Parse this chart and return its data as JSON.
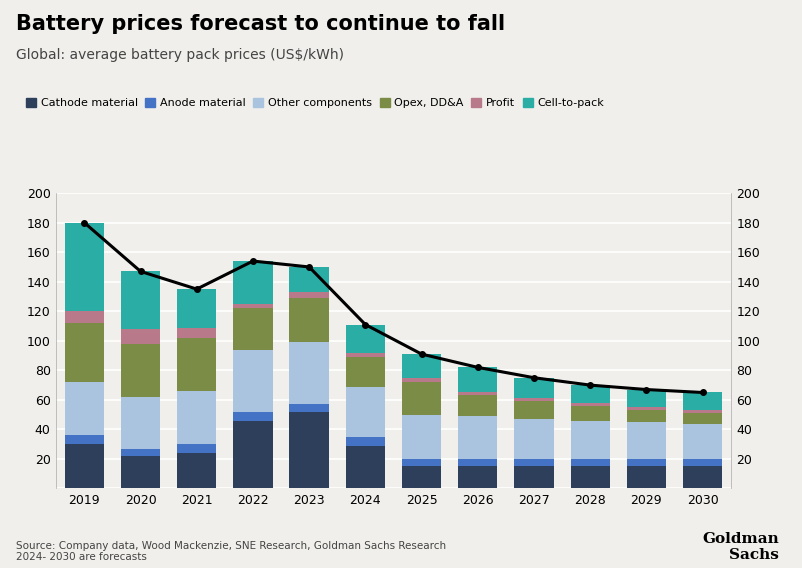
{
  "years": [
    2019,
    2020,
    2021,
    2022,
    2023,
    2024,
    2025,
    2026,
    2027,
    2028,
    2029,
    2030
  ],
  "title": "Battery prices forecast to continue to fall",
  "subtitle": "Global: average battery pack prices (US$/kWh)",
  "source": "Source: Company data, Wood Mackenzie, SNE Research, Goldman Sachs Research\n2024- 2030 are forecasts",
  "segments": {
    "Cathode material": {
      "color": "#2e3f5c",
      "values": [
        30,
        22,
        24,
        46,
        52,
        29,
        15,
        15,
        15,
        15,
        15,
        15
      ]
    },
    "Anode material": {
      "color": "#4472c4",
      "values": [
        6,
        5,
        6,
        6,
        5,
        6,
        5,
        5,
        5,
        5,
        5,
        5
      ]
    },
    "Other components": {
      "color": "#aac4e0",
      "values": [
        36,
        35,
        36,
        42,
        42,
        34,
        30,
        29,
        27,
        26,
        25,
        24
      ]
    },
    "Opex, DD&A": {
      "color": "#7a8c45",
      "values": [
        40,
        36,
        36,
        28,
        30,
        20,
        22,
        14,
        12,
        10,
        8,
        7
      ]
    },
    "Profit": {
      "color": "#b87a8a",
      "values": [
        8,
        10,
        7,
        3,
        4,
        3,
        3,
        2,
        2,
        2,
        2,
        2
      ]
    },
    "Cell-to-pack": {
      "color": "#2aada5",
      "values": [
        60,
        39,
        26,
        29,
        17,
        19,
        16,
        17,
        14,
        12,
        12,
        12
      ]
    }
  },
  "line_values": [
    180,
    147,
    135,
    154,
    150,
    111,
    91,
    82,
    75,
    70,
    67,
    65
  ],
  "ylim": [
    0,
    200
  ],
  "yticks": [
    0,
    20,
    40,
    60,
    80,
    100,
    120,
    140,
    160,
    180,
    200
  ],
  "background_color": "#f0efeb",
  "plot_background": "#f0efeb",
  "title_fontsize": 15,
  "subtitle_fontsize": 10,
  "legend_fontsize": 8
}
